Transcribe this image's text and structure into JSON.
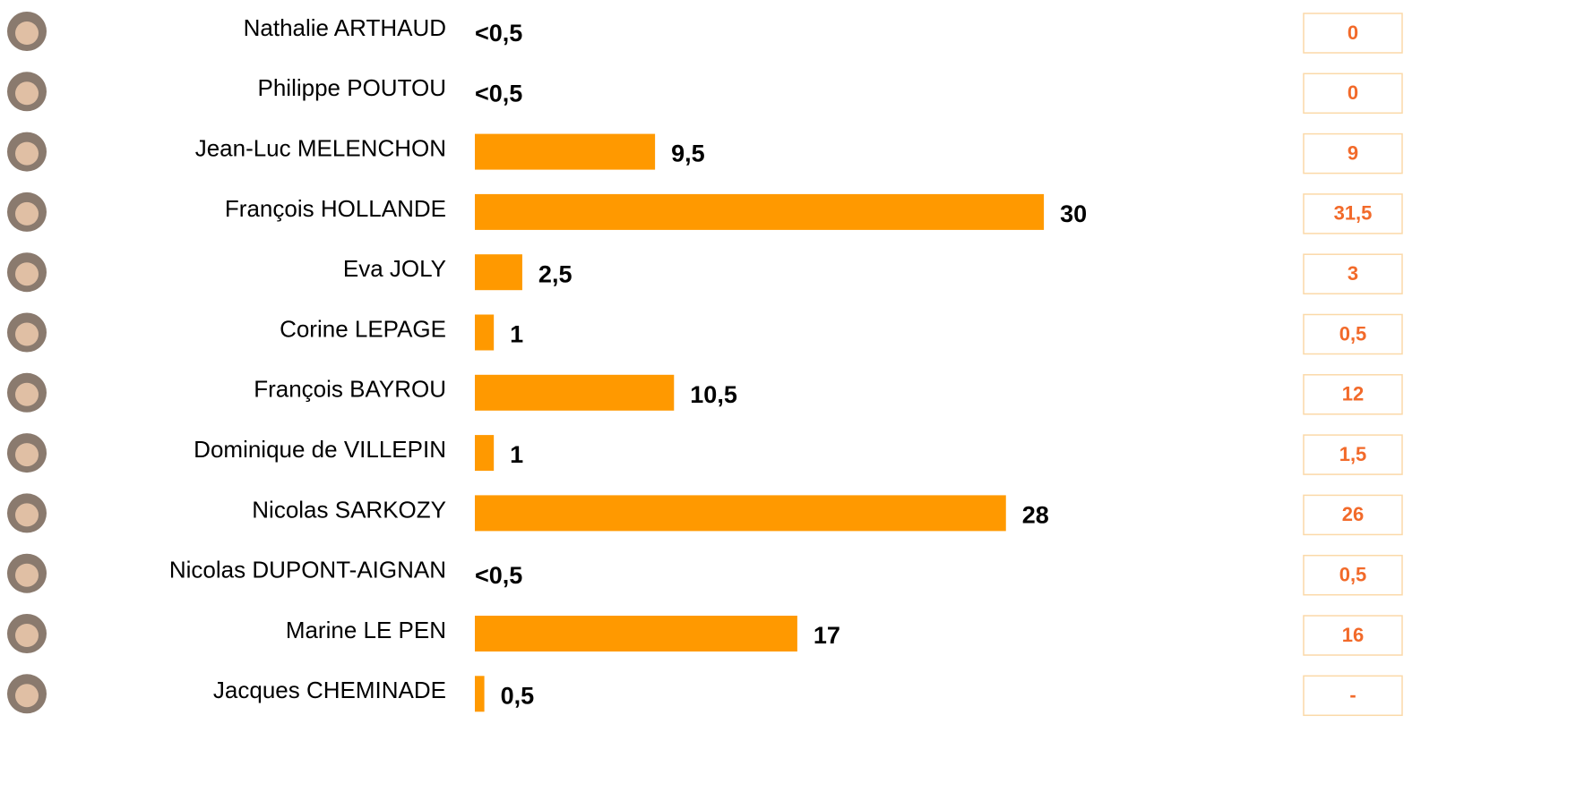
{
  "chart_data": {
    "type": "bar",
    "orientation": "horizontal",
    "color": "#ff9900",
    "categories": [
      "Nathalie ARTHAUD",
      "Philippe POUTOU",
      "Jean-Luc MELENCHON",
      "François HOLLANDE",
      "Eva JOLY",
      "Corine LEPAGE",
      "François BAYROU",
      "Dominique de VILLEPIN",
      "Nicolas SARKOZY",
      "Nicolas DUPONT-AIGNAN",
      "Marine LE PEN",
      "Jacques CHEMINADE"
    ],
    "values": [
      null,
      null,
      9.5,
      30,
      2.5,
      1,
      10.5,
      1,
      28,
      null,
      17,
      0.5
    ],
    "value_labels": [
      "<0,5",
      "<0,5",
      "9,5",
      "30",
      "2,5",
      "1",
      "10,5",
      "1",
      "28",
      "<0,5",
      "17",
      "0,5"
    ],
    "previous_labels": [
      "0",
      "0",
      "9",
      "31,5",
      "3",
      "0,5",
      "12",
      "1,5",
      "26",
      "0,5",
      "16",
      "-"
    ]
  }
}
